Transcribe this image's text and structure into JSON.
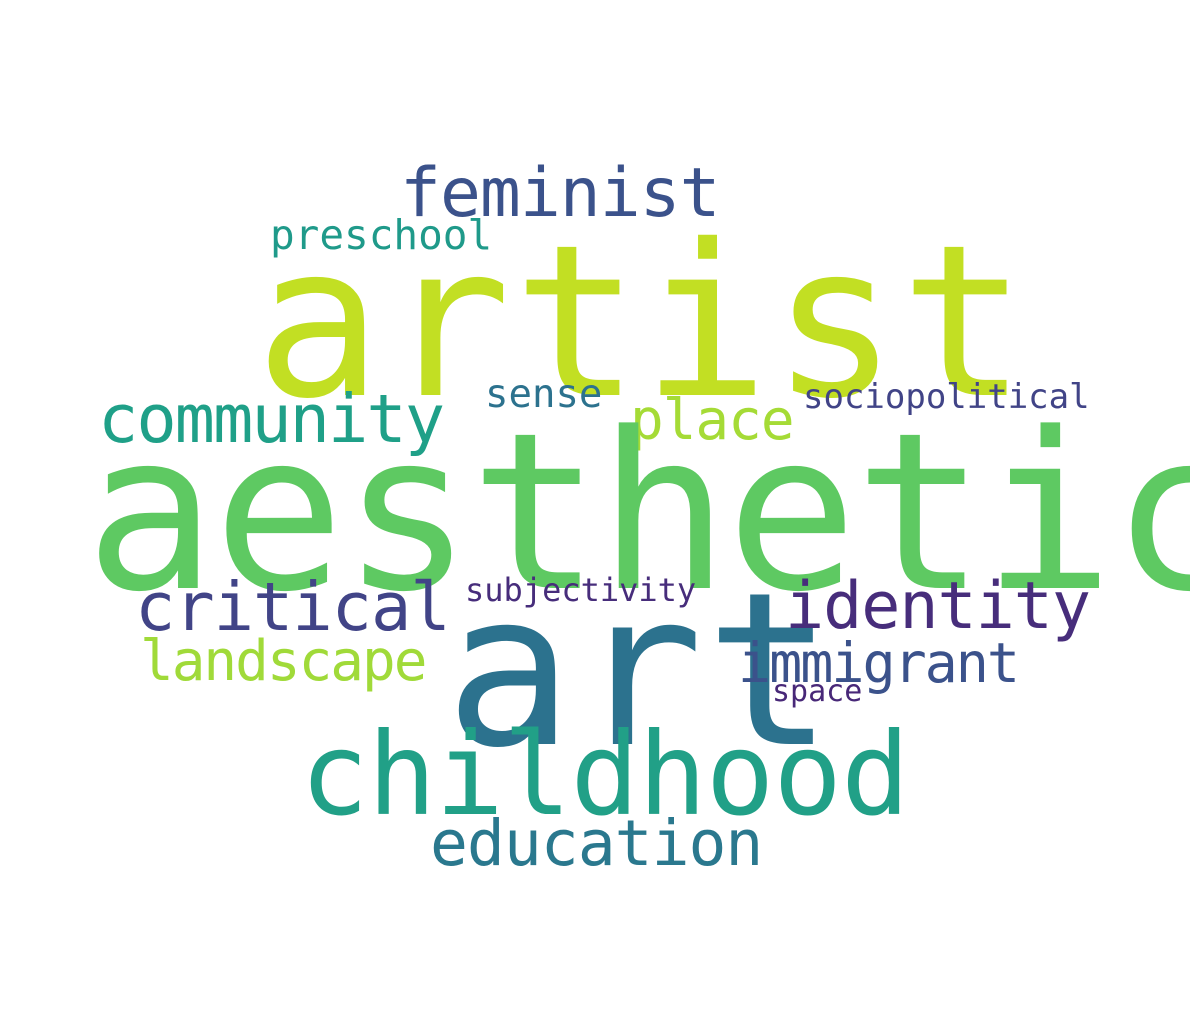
{
  "words": {
    "artist": {
      "text": "artist",
      "color": "#c2df23"
    },
    "aesthetic": {
      "text": "aesthetic",
      "color": "#5ec962"
    },
    "art": {
      "text": "art",
      "color": "#2c728e"
    },
    "childhood": {
      "text": "childhood",
      "color": "#21a087"
    },
    "feminist": {
      "text": "feminist",
      "color": "#3b528b"
    },
    "community": {
      "text": "community",
      "color": "#1fa088"
    },
    "critical": {
      "text": "critical",
      "color": "#414487"
    },
    "identity": {
      "text": "identity",
      "color": "#472d7b"
    },
    "education": {
      "text": "education",
      "color": "#2a788e"
    },
    "immigrant": {
      "text": "immigrant",
      "color": "#3b528b"
    },
    "landscape": {
      "text": "landscape",
      "color": "#a0da39"
    },
    "place": {
      "text": "place",
      "color": "#a5db36"
    },
    "preschool": {
      "text": "preschool",
      "color": "#1f9a8a"
    },
    "sense": {
      "text": "sense",
      "color": "#2c728e"
    },
    "sociopolitical": {
      "text": "sociopolitical",
      "color": "#414487"
    },
    "subjectivity": {
      "text": "subjectivity",
      "color": "#472d7b"
    },
    "space": {
      "text": "space",
      "color": "#482878"
    }
  }
}
